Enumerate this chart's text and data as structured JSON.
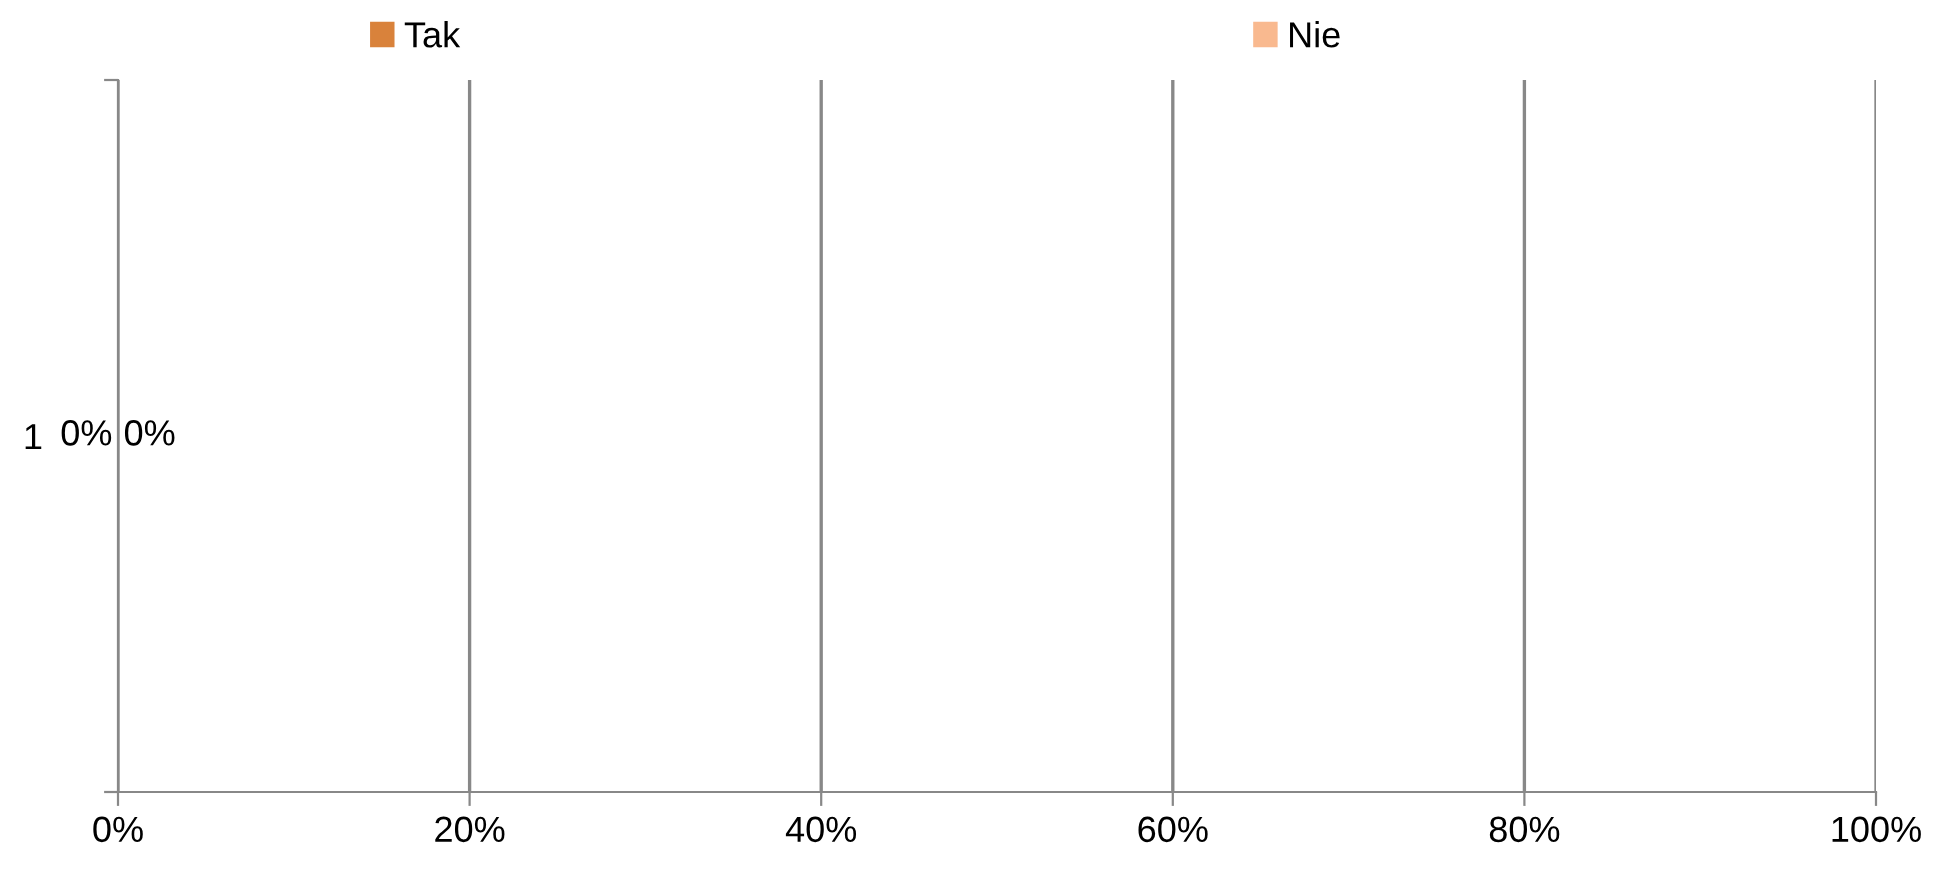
{
  "chart_data": {
    "type": "bar",
    "orientation": "horizontal",
    "stacked": true,
    "categories": [
      "1"
    ],
    "series": [
      {
        "name": "Tak",
        "color": "#d9823b",
        "values": [
          0
        ],
        "value_labels": [
          "0%"
        ]
      },
      {
        "name": "Nie",
        "color": "#f9b98f",
        "values": [
          0
        ],
        "value_labels": [
          "0%"
        ]
      }
    ],
    "xlim": [
      0,
      100
    ],
    "xticks": [
      {
        "value": 0,
        "label": "0%"
      },
      {
        "value": 20,
        "label": "20%"
      },
      {
        "value": 40,
        "label": "40%"
      },
      {
        "value": 60,
        "label": "60%"
      },
      {
        "value": 80,
        "label": "80%"
      },
      {
        "value": 100,
        "label": "100%"
      }
    ],
    "grid": "x",
    "legend": "top"
  }
}
